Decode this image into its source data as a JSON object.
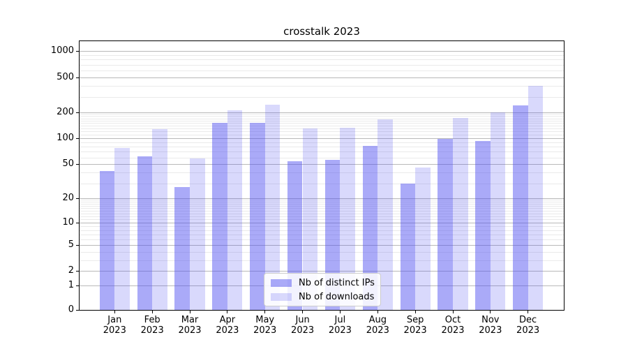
{
  "chart_data": {
    "type": "bar",
    "title": "crosstalk 2023",
    "categories": [
      "Jan 2023",
      "Feb 2023",
      "Mar 2023",
      "Apr 2023",
      "May 2023",
      "Jun 2023",
      "Jul 2023",
      "Aug 2023",
      "Sep 2023",
      "Oct 2023",
      "Nov 2023",
      "Dec 2023"
    ],
    "series": [
      {
        "name": "Nb of distinct IPs",
        "key": "ips",
        "values": [
          42,
          62,
          27,
          152,
          152,
          54,
          56,
          82,
          30,
          98,
          93,
          240
        ]
      },
      {
        "name": "Nb of downloads",
        "key": "downloads",
        "values": [
          78,
          128,
          59,
          210,
          245,
          129,
          132,
          164,
          46,
          172,
          200,
          400
        ]
      }
    ],
    "y_ticks": [
      0,
      1,
      2,
      5,
      10,
      20,
      50,
      100,
      200,
      500,
      1000
    ],
    "y_minor_gridlines": [
      3,
      4,
      6,
      7,
      8,
      9,
      11,
      12,
      13,
      14,
      15,
      16,
      17,
      18,
      19,
      30,
      40,
      60,
      70,
      80,
      90,
      110,
      120,
      130,
      140,
      150,
      160,
      170,
      180,
      190,
      300,
      400,
      600,
      700,
      800,
      900
    ],
    "ylim": [
      0,
      1290
    ],
    "y_scale": "log1p",
    "grid": true,
    "legend_position": "lower-center-inside",
    "colors": {
      "distinct_ips_bar": "rgba(74,74,240,0.47)",
      "downloads_bar": "rgba(74,74,240,0.21)",
      "grid_major": "#b9b9b9",
      "grid_minor": "#eaeaea",
      "axis": "#000000",
      "background": "#ffffff"
    }
  }
}
